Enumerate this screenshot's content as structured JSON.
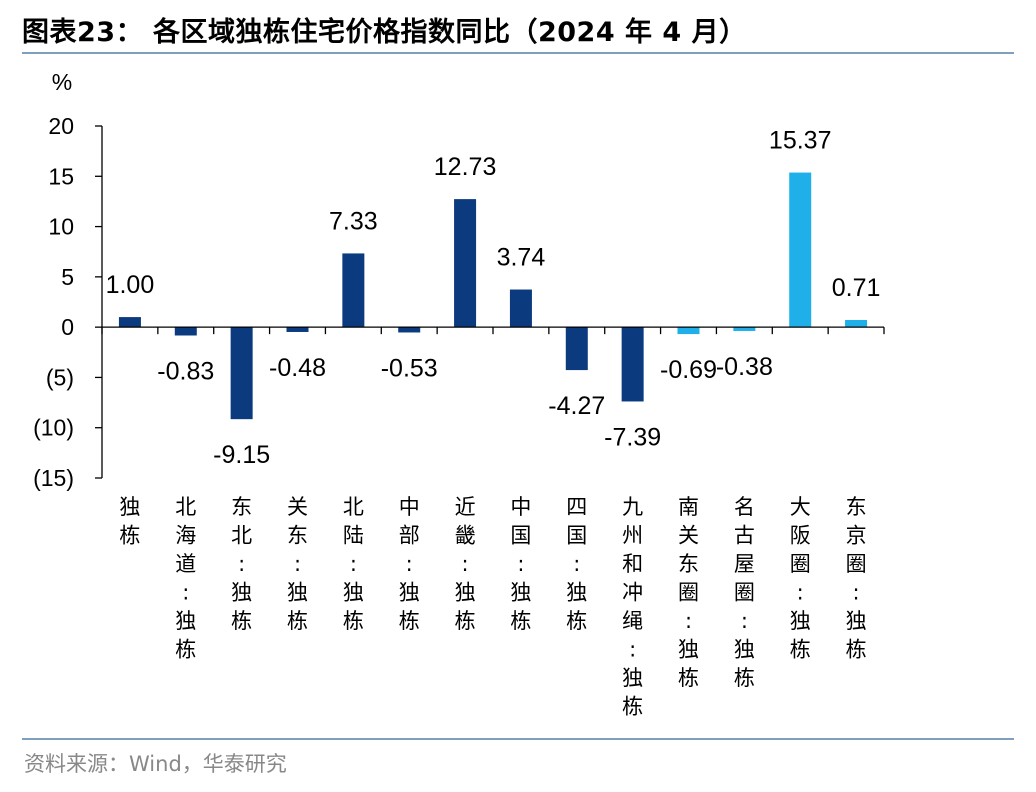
{
  "title": "图表23：  各区域独栋住宅价格指数同比（2024 年 4 月）",
  "source": "资料来源：Wind，华泰研究",
  "colors": {
    "dark": "#0b3a7e",
    "light": "#1fb0ea",
    "rule": "#7f9fbf"
  },
  "chart_data": {
    "type": "bar",
    "ylabel": "%",
    "ylim": [
      -15,
      20
    ],
    "yticks": [
      20,
      15,
      10,
      5,
      0,
      -5,
      -10,
      -15
    ],
    "ytick_labels": [
      "20",
      "15",
      "10",
      "5",
      "0",
      "(5)",
      "(10)",
      "(15)"
    ],
    "categories": [
      "独栋",
      "北海道:独栋",
      "东北:独栋",
      "关东:独栋",
      "北陆:独栋",
      "中部:独栋",
      "近畿:独栋",
      "中国:独栋",
      "四国:独栋",
      "九州和冲绳:独栋",
      "南关东圈:独栋",
      "名古屋圈:独栋",
      "大阪圈:独栋",
      "东京圈:独栋"
    ],
    "values": [
      1.0,
      -0.83,
      -9.15,
      -0.48,
      7.33,
      -0.53,
      12.73,
      3.74,
      -4.27,
      -7.39,
      -0.69,
      -0.38,
      15.37,
      0.71
    ],
    "value_labels": [
      "1.00",
      "-0.83",
      "-9.15",
      "-0.48",
      "7.33",
      "-0.53",
      "12.73",
      "3.74",
      "-4.27",
      "-7.39",
      "-0.69",
      "-0.38",
      "15.37",
      "0.71"
    ],
    "bar_color": [
      "dark",
      "dark",
      "dark",
      "dark",
      "dark",
      "dark",
      "dark",
      "dark",
      "dark",
      "dark",
      "light",
      "light",
      "light",
      "light"
    ]
  }
}
